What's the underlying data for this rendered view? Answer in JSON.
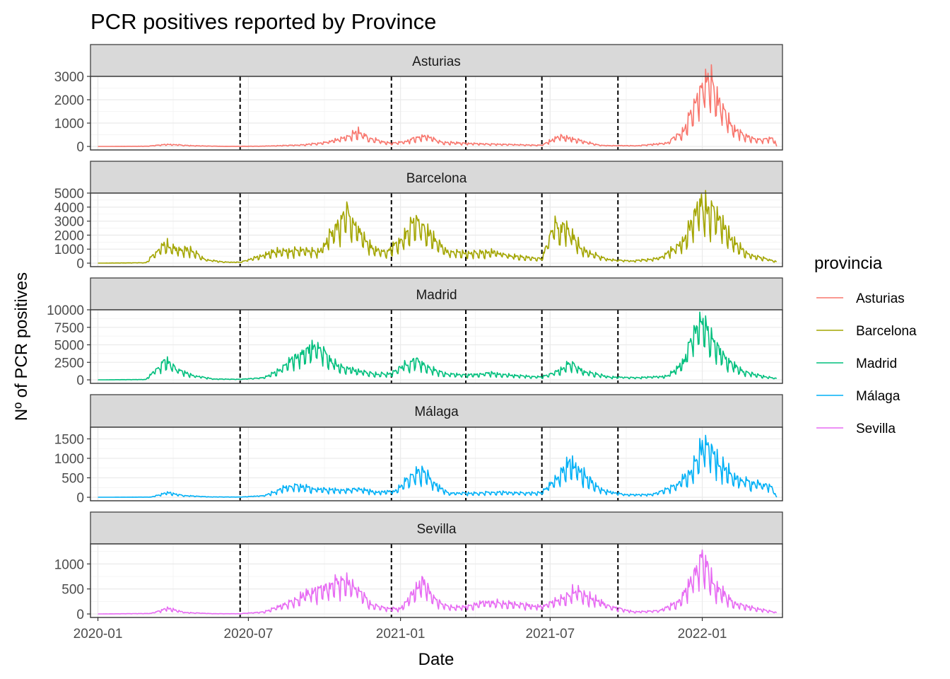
{
  "chart_data": {
    "type": "line",
    "title": "PCR positives reported by Province",
    "xlabel": "Date",
    "ylabel": "Nº of PCR positives",
    "xlim": [
      "2019-12-23",
      "2022-04-08"
    ],
    "x_ticks": [
      "2020-01",
      "2020-07",
      "2021-01",
      "2021-07",
      "2022-01"
    ],
    "vlines": [
      "2020-06-21",
      "2020-12-21",
      "2021-03-21",
      "2021-06-21",
      "2021-09-21"
    ],
    "legend": {
      "title": "provincia",
      "position": "right"
    },
    "grid": true,
    "series": [
      {
        "name": "Asturias",
        "color": "#F8766D",
        "ylim": [
          -150,
          3000
        ],
        "y_ticks": [
          0,
          1000,
          2000,
          3000
        ],
        "y_tick_labels": [
          "0",
          "1000",
          "2000",
          "3000"
        ],
        "keypoints": [
          [
            "2020-01-01",
            0
          ],
          [
            "2020-03-01",
            10
          ],
          [
            "2020-03-25",
            90
          ],
          [
            "2020-04-25",
            30
          ],
          [
            "2020-06-01",
            5
          ],
          [
            "2020-07-15",
            10
          ],
          [
            "2020-09-01",
            60
          ],
          [
            "2020-10-01",
            150
          ],
          [
            "2020-10-25",
            350
          ],
          [
            "2020-11-12",
            620
          ],
          [
            "2020-11-25",
            320
          ],
          [
            "2020-12-20",
            130
          ],
          [
            "2021-01-05",
            180
          ],
          [
            "2021-01-28",
            460
          ],
          [
            "2021-02-20",
            180
          ],
          [
            "2021-04-01",
            110
          ],
          [
            "2021-05-15",
            80
          ],
          [
            "2021-06-21",
            50
          ],
          [
            "2021-07-12",
            420
          ],
          [
            "2021-08-01",
            280
          ],
          [
            "2021-09-01",
            40
          ],
          [
            "2021-10-15",
            30
          ],
          [
            "2021-11-20",
            150
          ],
          [
            "2021-12-10",
            700
          ],
          [
            "2021-12-25",
            1900
          ],
          [
            "2022-01-10",
            2800
          ],
          [
            "2022-01-25",
            1500
          ],
          [
            "2022-02-10",
            700
          ],
          [
            "2022-02-28",
            350
          ],
          [
            "2022-03-15",
            280
          ],
          [
            "2022-03-28",
            380
          ],
          [
            "2022-04-01",
            0
          ]
        ]
      },
      {
        "name": "Barcelona",
        "color": "#A3A500",
        "ylim": [
          -250,
          5000
        ],
        "y_ticks": [
          0,
          1000,
          2000,
          3000,
          4000,
          5000
        ],
        "y_tick_labels": [
          "0",
          "1000",
          "2000",
          "3000",
          "4000",
          "5000"
        ],
        "keypoints": [
          [
            "2020-01-01",
            0
          ],
          [
            "2020-02-28",
            30
          ],
          [
            "2020-03-22",
            1350
          ],
          [
            "2020-04-05",
            950
          ],
          [
            "2020-04-20",
            950
          ],
          [
            "2020-05-10",
            250
          ],
          [
            "2020-06-01",
            80
          ],
          [
            "2020-06-21",
            60
          ],
          [
            "2020-07-10",
            400
          ],
          [
            "2020-08-01",
            800
          ],
          [
            "2020-09-01",
            850
          ],
          [
            "2020-09-25",
            850
          ],
          [
            "2020-10-10",
            2000
          ],
          [
            "2020-10-28",
            3500
          ],
          [
            "2020-11-10",
            2400
          ],
          [
            "2020-11-28",
            1000
          ],
          [
            "2020-12-15",
            750
          ],
          [
            "2021-01-05",
            1700
          ],
          [
            "2021-01-18",
            2900
          ],
          [
            "2021-02-05",
            2100
          ],
          [
            "2021-02-25",
            800
          ],
          [
            "2021-03-25",
            650
          ],
          [
            "2021-04-20",
            800
          ],
          [
            "2021-05-15",
            500
          ],
          [
            "2021-06-21",
            300
          ],
          [
            "2021-07-05",
            2500
          ],
          [
            "2021-07-20",
            2400
          ],
          [
            "2021-08-10",
            900
          ],
          [
            "2021-09-10",
            250
          ],
          [
            "2021-10-10",
            150
          ],
          [
            "2021-11-10",
            350
          ],
          [
            "2021-12-10",
            1500
          ],
          [
            "2021-12-30",
            4200
          ],
          [
            "2022-01-20",
            3300
          ],
          [
            "2022-02-05",
            1600
          ],
          [
            "2022-02-25",
            600
          ],
          [
            "2022-03-20",
            280
          ],
          [
            "2022-04-01",
            100
          ]
        ]
      },
      {
        "name": "Madrid",
        "color": "#00BF7D",
        "ylim": [
          -500,
          10000
        ],
        "y_ticks": [
          0,
          2500,
          5000,
          7500,
          10000
        ],
        "y_tick_labels": [
          "0",
          "2500",
          "5000",
          "7500",
          "10000"
        ],
        "keypoints": [
          [
            "2020-01-01",
            0
          ],
          [
            "2020-02-28",
            50
          ],
          [
            "2020-03-12",
            1500
          ],
          [
            "2020-03-23",
            2600
          ],
          [
            "2020-04-05",
            1500
          ],
          [
            "2020-04-25",
            600
          ],
          [
            "2020-05-20",
            120
          ],
          [
            "2020-06-21",
            80
          ],
          [
            "2020-07-20",
            300
          ],
          [
            "2020-08-10",
            1500
          ],
          [
            "2020-08-25",
            3000
          ],
          [
            "2020-09-10",
            4000
          ],
          [
            "2020-09-22",
            5000
          ],
          [
            "2020-10-05",
            3000
          ],
          [
            "2020-10-20",
            1800
          ],
          [
            "2020-11-10",
            1200
          ],
          [
            "2020-12-05",
            800
          ],
          [
            "2020-12-21",
            900
          ],
          [
            "2021-01-05",
            2000
          ],
          [
            "2021-01-22",
            2800
          ],
          [
            "2021-02-05",
            1600
          ],
          [
            "2021-02-25",
            800
          ],
          [
            "2021-03-21",
            650
          ],
          [
            "2021-04-20",
            900
          ],
          [
            "2021-05-20",
            600
          ],
          [
            "2021-06-21",
            400
          ],
          [
            "2021-07-10",
            1200
          ],
          [
            "2021-07-25",
            2300
          ],
          [
            "2021-08-10",
            1200
          ],
          [
            "2021-09-10",
            400
          ],
          [
            "2021-10-15",
            300
          ],
          [
            "2021-11-20",
            500
          ],
          [
            "2021-12-10",
            2500
          ],
          [
            "2021-12-28",
            8500
          ],
          [
            "2022-01-15",
            5000
          ],
          [
            "2022-02-01",
            2500
          ],
          [
            "2022-02-20",
            1100
          ],
          [
            "2022-03-20",
            400
          ],
          [
            "2022-04-01",
            200
          ]
        ]
      },
      {
        "name": "Málaga",
        "color": "#00B0F6",
        "ylim": [
          -90,
          1800
        ],
        "y_ticks": [
          0,
          500,
          1000,
          1500
        ],
        "y_tick_labels": [
          "0",
          "500",
          "1000",
          "1500"
        ],
        "keypoints": [
          [
            "2020-01-01",
            0
          ],
          [
            "2020-03-05",
            5
          ],
          [
            "2020-03-25",
            120
          ],
          [
            "2020-04-15",
            40
          ],
          [
            "2020-05-15",
            10
          ],
          [
            "2020-06-21",
            5
          ],
          [
            "2020-07-20",
            40
          ],
          [
            "2020-08-15",
            250
          ],
          [
            "2020-09-01",
            280
          ],
          [
            "2020-09-20",
            210
          ],
          [
            "2020-10-25",
            170
          ],
          [
            "2020-11-10",
            220
          ],
          [
            "2020-12-01",
            130
          ],
          [
            "2020-12-25",
            150
          ],
          [
            "2021-01-10",
            450
          ],
          [
            "2021-01-25",
            700
          ],
          [
            "2021-02-10",
            350
          ],
          [
            "2021-03-01",
            100
          ],
          [
            "2021-04-01",
            100
          ],
          [
            "2021-05-01",
            130
          ],
          [
            "2021-06-01",
            100
          ],
          [
            "2021-06-21",
            120
          ],
          [
            "2021-07-10",
            500
          ],
          [
            "2021-07-25",
            850
          ],
          [
            "2021-08-10",
            600
          ],
          [
            "2021-09-01",
            180
          ],
          [
            "2021-10-01",
            60
          ],
          [
            "2021-11-01",
            70
          ],
          [
            "2021-12-01",
            300
          ],
          [
            "2021-12-20",
            700
          ],
          [
            "2022-01-05",
            1400
          ],
          [
            "2022-01-20",
            900
          ],
          [
            "2022-02-10",
            500
          ],
          [
            "2022-03-01",
            350
          ],
          [
            "2022-03-25",
            280
          ],
          [
            "2022-04-01",
            0
          ]
        ]
      },
      {
        "name": "Sevilla",
        "color": "#E76BF3",
        "ylim": [
          -70,
          1400
        ],
        "y_ticks": [
          0,
          500,
          1000
        ],
        "y_tick_labels": [
          "0",
          "500",
          "1000"
        ],
        "keypoints": [
          [
            "2020-01-01",
            0
          ],
          [
            "2020-03-05",
            10
          ],
          [
            "2020-03-25",
            110
          ],
          [
            "2020-04-15",
            30
          ],
          [
            "2020-05-20",
            5
          ],
          [
            "2020-06-21",
            5
          ],
          [
            "2020-07-20",
            40
          ],
          [
            "2020-08-20",
            220
          ],
          [
            "2020-09-10",
            400
          ],
          [
            "2020-10-01",
            500
          ],
          [
            "2020-10-25",
            650
          ],
          [
            "2020-11-10",
            500
          ],
          [
            "2020-11-25",
            200
          ],
          [
            "2020-12-15",
            100
          ],
          [
            "2021-01-01",
            100
          ],
          [
            "2021-01-15",
            400
          ],
          [
            "2021-01-28",
            650
          ],
          [
            "2021-02-10",
            300
          ],
          [
            "2021-03-01",
            130
          ],
          [
            "2021-03-21",
            140
          ],
          [
            "2021-04-15",
            230
          ],
          [
            "2021-05-15",
            200
          ],
          [
            "2021-06-21",
            140
          ],
          [
            "2021-07-15",
            300
          ],
          [
            "2021-08-01",
            470
          ],
          [
            "2021-08-15",
            350
          ],
          [
            "2021-09-10",
            150
          ],
          [
            "2021-10-10",
            40
          ],
          [
            "2021-11-10",
            60
          ],
          [
            "2021-12-05",
            250
          ],
          [
            "2021-12-20",
            700
          ],
          [
            "2022-01-01",
            1150
          ],
          [
            "2022-01-15",
            550
          ],
          [
            "2022-02-10",
            200
          ],
          [
            "2022-03-10",
            100
          ],
          [
            "2022-04-01",
            30
          ]
        ]
      }
    ]
  }
}
